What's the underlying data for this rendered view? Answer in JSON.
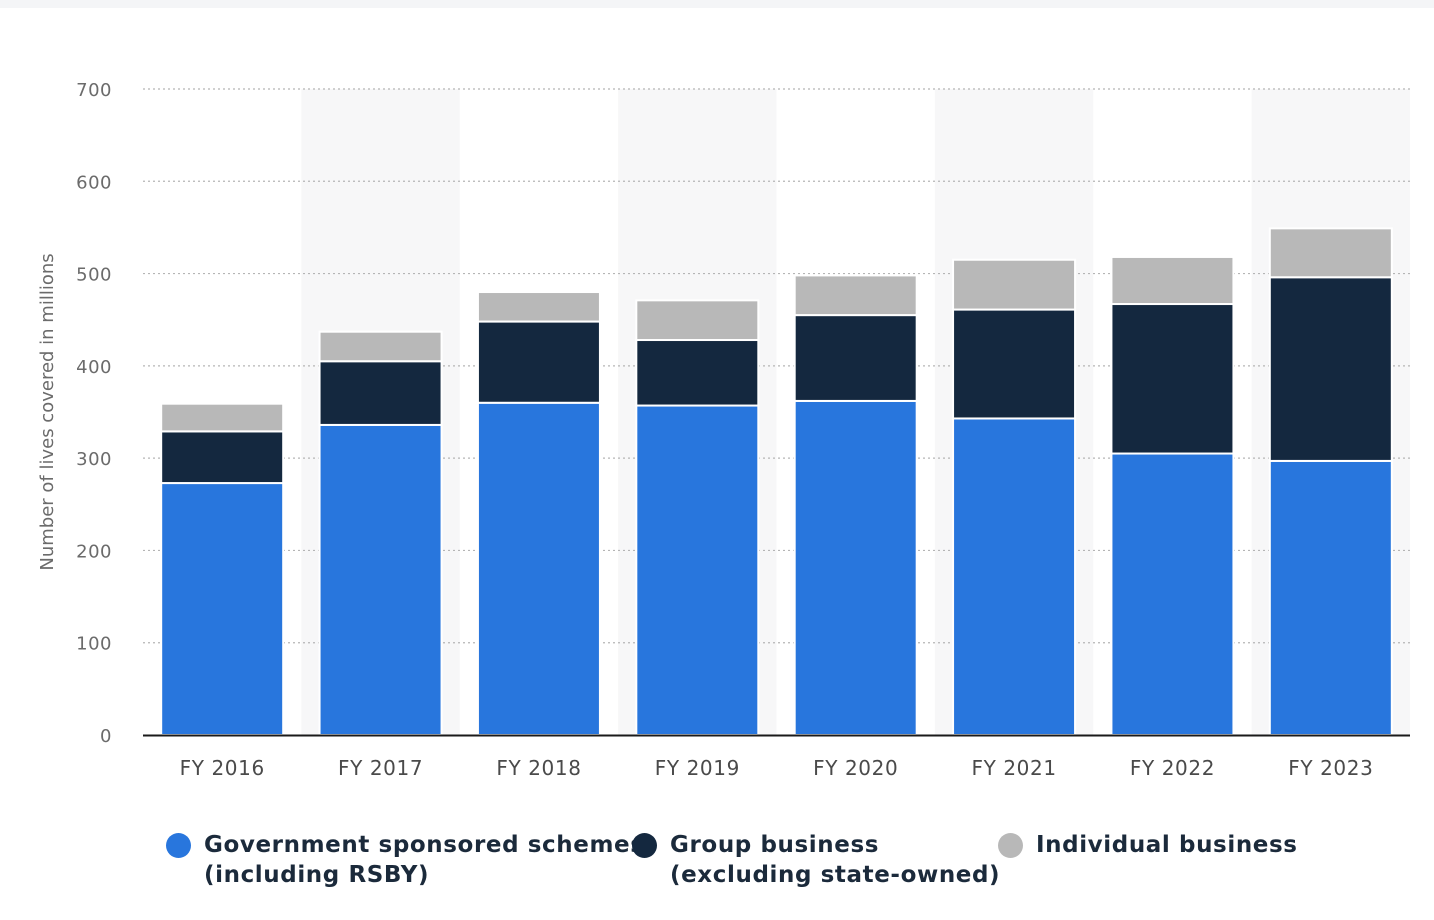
{
  "chart_data": {
    "type": "bar",
    "stacked": true,
    "categories": [
      "FY 2016",
      "FY 2017",
      "FY 2018",
      "FY 2019",
      "FY 2020",
      "FY 2021",
      "FY 2022",
      "FY 2023"
    ],
    "series": [
      {
        "name": "Government sponsored schemes (including RSBY)",
        "color": "#2876dd",
        "values": [
          273,
          336,
          360,
          357,
          362,
          343,
          305,
          297
        ]
      },
      {
        "name": "Group business (excluding state-owned)",
        "color": "#14283f",
        "values": [
          56,
          69,
          88,
          71,
          93,
          118,
          162,
          199
        ]
      },
      {
        "name": "Individual business",
        "color": "#b8b8b8",
        "values": [
          30,
          32,
          32,
          43,
          43,
          54,
          51,
          53
        ]
      }
    ],
    "ylabel": "Number of lives covered in millions",
    "xlabel": "",
    "ylim": [
      0,
      700
    ],
    "yticks": [
      0,
      100,
      200,
      300,
      400,
      500,
      600,
      700
    ],
    "grid": true,
    "legend_position": "bottom"
  },
  "legend": {
    "items": [
      {
        "line1": "Government sponsored schemes",
        "line2": "(including RSBY)",
        "color": "#2876dd"
      },
      {
        "line1": "Group business",
        "line2": "(excluding state-owned)",
        "color": "#14283f"
      },
      {
        "line1": "Individual business",
        "line2": "",
        "color": "#b8b8b8"
      }
    ]
  }
}
